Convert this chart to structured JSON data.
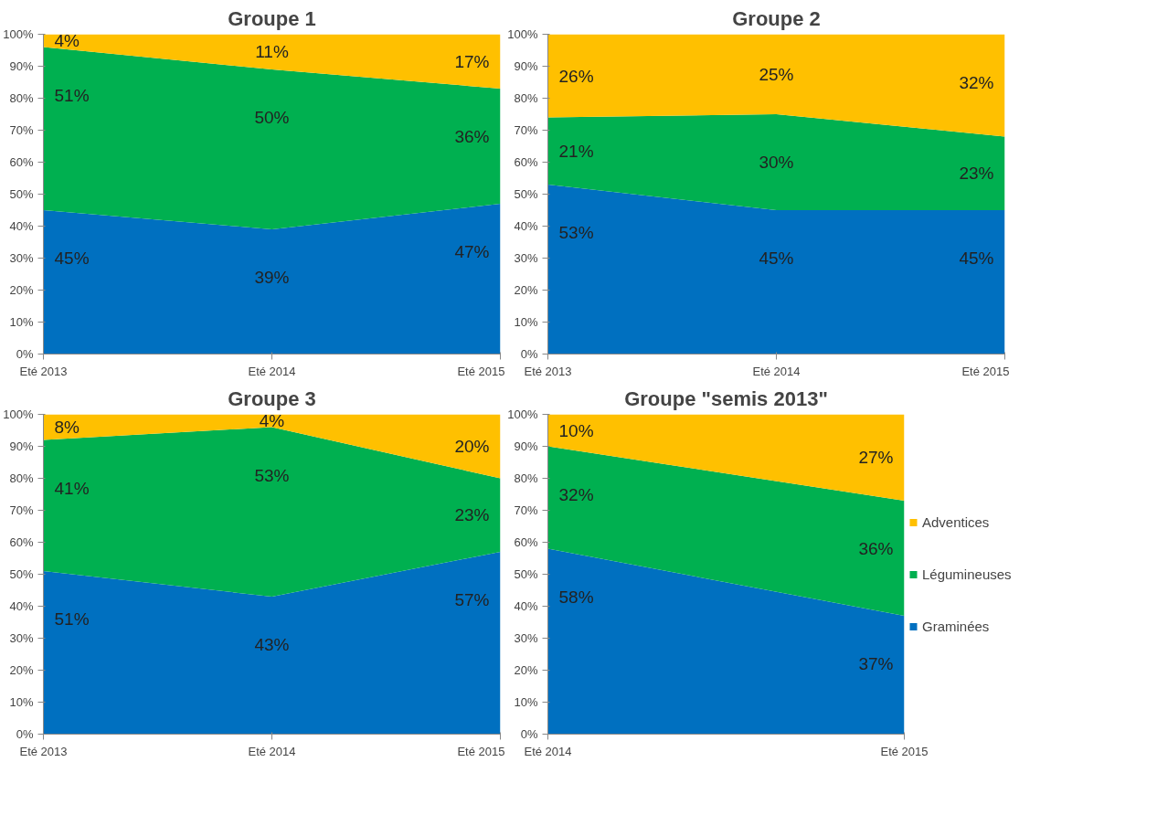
{
  "chart_data": [
    {
      "type": "area",
      "stacked": true,
      "title": "Groupe 1",
      "categories": [
        "Eté 2013",
        "Eté 2014",
        "Eté 2015"
      ],
      "ylim": [
        0,
        100
      ],
      "yticks": [
        {
          "value": 0,
          "label": "0%"
        },
        {
          "value": 10,
          "label": "10%"
        },
        {
          "value": 20,
          "label": "20%"
        },
        {
          "value": 30,
          "label": "30%"
        },
        {
          "value": 40,
          "label": "40%"
        },
        {
          "value": 50,
          "label": "50%"
        },
        {
          "value": 60,
          "label": "60%"
        },
        {
          "value": 70,
          "label": "70%"
        },
        {
          "value": 80,
          "label": "80%"
        },
        {
          "value": 90,
          "label": "90%"
        },
        {
          "value": 100,
          "label": "100%"
        }
      ],
      "grid": false,
      "legend": false,
      "series": [
        {
          "color": "#0070c0",
          "values": [
            45,
            39,
            47
          ],
          "value_labels": [
            "45%",
            "39%",
            "47%"
          ]
        },
        {
          "color": "#00b050",
          "values": [
            51,
            50,
            36
          ],
          "value_labels": [
            "51%",
            "50%",
            "36%"
          ]
        },
        {
          "color": "#ffc000",
          "values": [
            4,
            11,
            17
          ],
          "value_labels": [
            "4%",
            "11%",
            "17%"
          ]
        }
      ]
    },
    {
      "type": "area",
      "stacked": true,
      "title": "Groupe 2",
      "categories": [
        "Eté 2013",
        "Eté 2014",
        "Eté 2015"
      ],
      "ylim": [
        0,
        100
      ],
      "yticks": [
        {
          "value": 0,
          "label": "0%"
        },
        {
          "value": 10,
          "label": "10%"
        },
        {
          "value": 20,
          "label": "20%"
        },
        {
          "value": 30,
          "label": "30%"
        },
        {
          "value": 40,
          "label": "40%"
        },
        {
          "value": 50,
          "label": "50%"
        },
        {
          "value": 60,
          "label": "60%"
        },
        {
          "value": 70,
          "label": "70%"
        },
        {
          "value": 80,
          "label": "80%"
        },
        {
          "value": 90,
          "label": "90%"
        },
        {
          "value": 100,
          "label": "100%"
        }
      ],
      "grid": false,
      "legend": false,
      "series": [
        {
          "color": "#0070c0",
          "values": [
            53,
            45,
            45
          ],
          "value_labels": [
            "53%",
            "45%",
            "45%"
          ]
        },
        {
          "color": "#00b050",
          "values": [
            21,
            30,
            23
          ],
          "value_labels": [
            "21%",
            "30%",
            "23%"
          ]
        },
        {
          "color": "#ffc000",
          "values": [
            26,
            25,
            32
          ],
          "value_labels": [
            "26%",
            "25%",
            "32%"
          ]
        }
      ]
    },
    {
      "type": "area",
      "stacked": true,
      "title": "Groupe 3",
      "categories": [
        "Eté 2013",
        "Eté 2014",
        "Eté 2015"
      ],
      "ylim": [
        0,
        100
      ],
      "yticks": [
        {
          "value": 0,
          "label": "0%"
        },
        {
          "value": 10,
          "label": "10%"
        },
        {
          "value": 20,
          "label": "20%"
        },
        {
          "value": 30,
          "label": "30%"
        },
        {
          "value": 40,
          "label": "40%"
        },
        {
          "value": 50,
          "label": "50%"
        },
        {
          "value": 60,
          "label": "60%"
        },
        {
          "value": 70,
          "label": "70%"
        },
        {
          "value": 80,
          "label": "80%"
        },
        {
          "value": 90,
          "label": "90%"
        },
        {
          "value": 100,
          "label": "100%"
        }
      ],
      "grid": false,
      "legend": false,
      "series": [
        {
          "color": "#0070c0",
          "values": [
            51,
            43,
            57
          ],
          "value_labels": [
            "51%",
            "43%",
            "57%"
          ]
        },
        {
          "color": "#00b050",
          "values": [
            41,
            53,
            23
          ],
          "value_labels": [
            "41%",
            "53%",
            "23%"
          ]
        },
        {
          "color": "#ffc000",
          "values": [
            8,
            4,
            20
          ],
          "value_labels": [
            "8%",
            "4%",
            "20%"
          ]
        }
      ]
    },
    {
      "type": "area",
      "stacked": true,
      "title": "Groupe \"semis 2013\"",
      "categories": [
        "Eté 2014",
        "Eté 2015"
      ],
      "ylim": [
        0,
        100
      ],
      "yticks": [
        {
          "value": 0,
          "label": "0%"
        },
        {
          "value": 10,
          "label": "10%"
        },
        {
          "value": 20,
          "label": "20%"
        },
        {
          "value": 30,
          "label": "30%"
        },
        {
          "value": 40,
          "label": "40%"
        },
        {
          "value": 50,
          "label": "50%"
        },
        {
          "value": 60,
          "label": "60%"
        },
        {
          "value": 70,
          "label": "70%"
        },
        {
          "value": 80,
          "label": "80%"
        },
        {
          "value": 90,
          "label": "90%"
        },
        {
          "value": 100,
          "label": "100%"
        }
      ],
      "legend": "right",
      "series": [
        {
          "name": "Graminées",
          "color": "#0070c0",
          "values": [
            58,
            37
          ],
          "value_labels": [
            "58%",
            "37%"
          ]
        },
        {
          "name": "Légumineuses",
          "color": "#00b050",
          "values": [
            32,
            36
          ],
          "value_labels": [
            "32%",
            "36%"
          ]
        },
        {
          "name": "Adventices",
          "color": "#ffc000",
          "values": [
            10,
            27
          ],
          "value_labels": [
            "10%",
            "27%"
          ]
        }
      ]
    }
  ]
}
